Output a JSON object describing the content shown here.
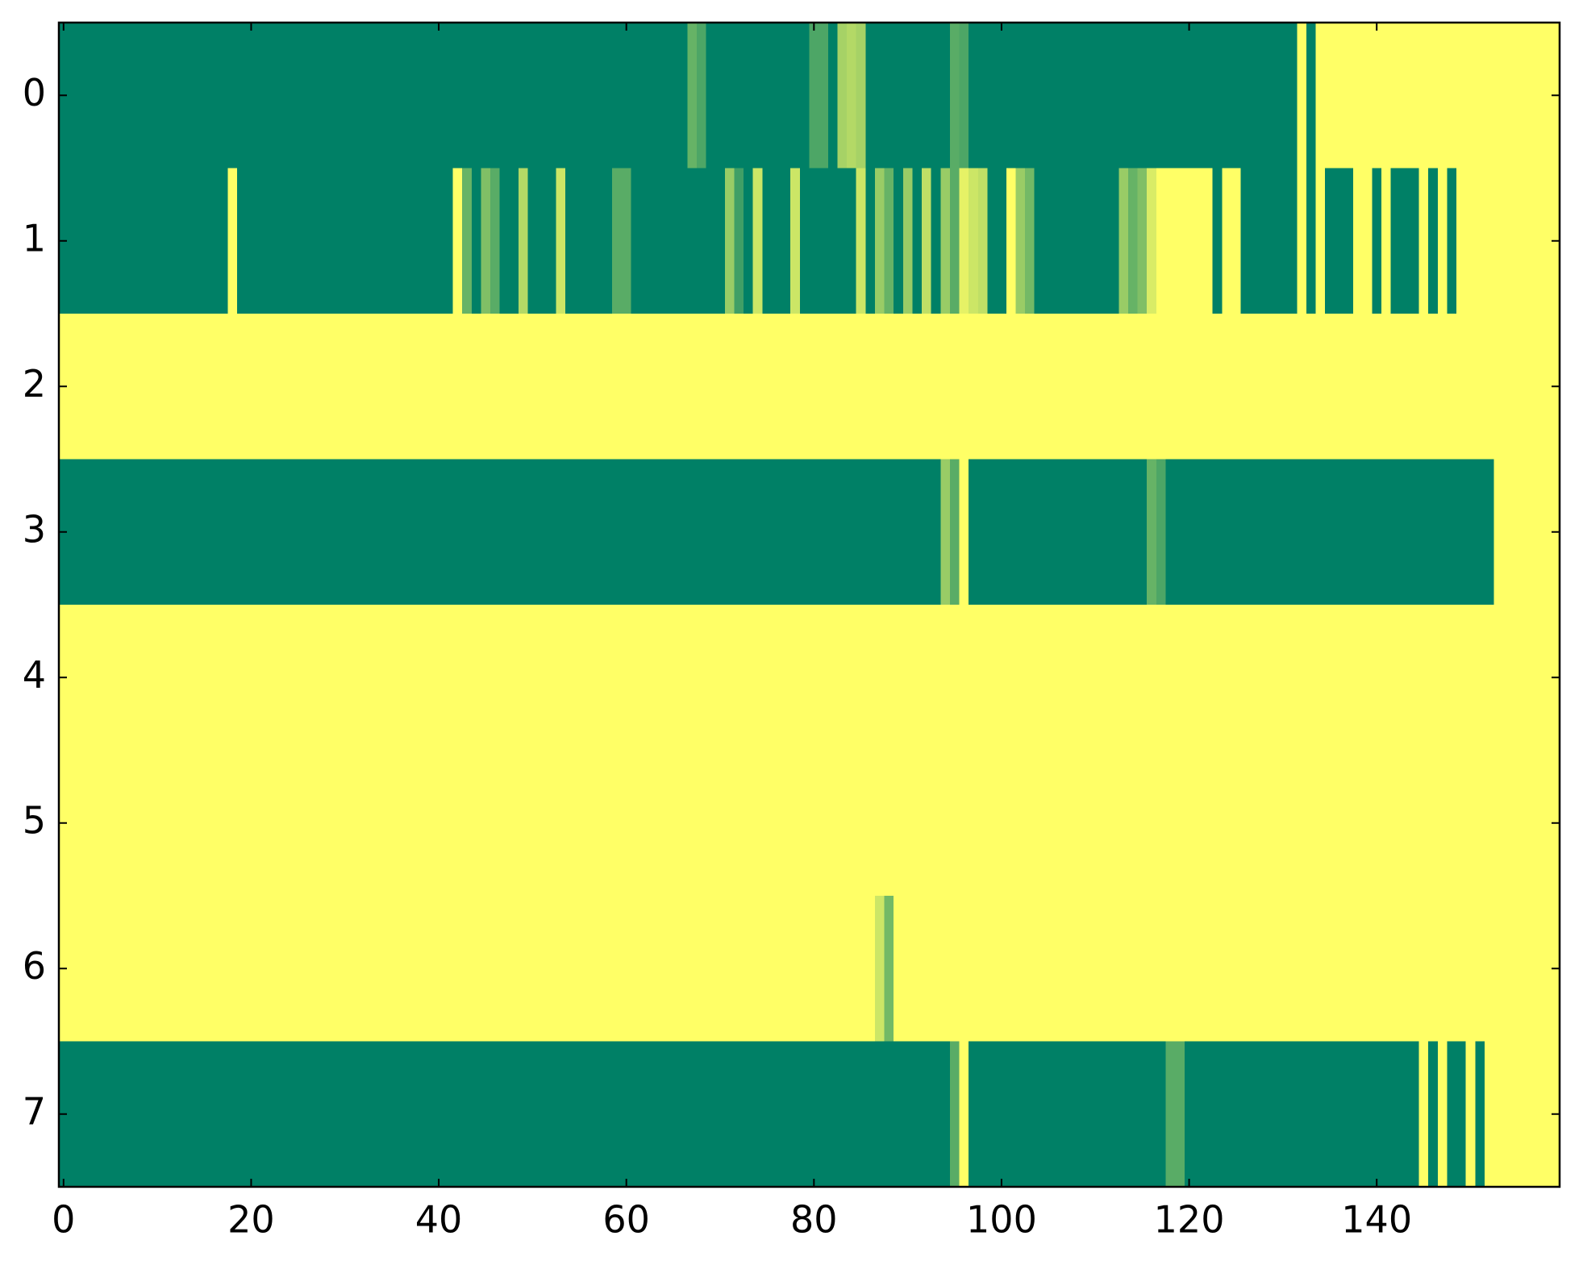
{
  "chart_data": {
    "type": "heatmap",
    "colormap": "summer",
    "xlim": [
      -0.5,
      159.5
    ],
    "ylim": [
      7.5,
      -0.5
    ],
    "xticks": [
      0,
      20,
      40,
      60,
      80,
      100,
      120,
      140
    ],
    "yticks": [
      0,
      1,
      2,
      3,
      4,
      5,
      6,
      7
    ],
    "z": [
      [
        0,
        0,
        0,
        0,
        0,
        0,
        0,
        0,
        0,
        0,
        0,
        0,
        0,
        0,
        0,
        0,
        0,
        0,
        0,
        0,
        0,
        0,
        0,
        0,
        0,
        0,
        0,
        0,
        0,
        0,
        0,
        0,
        0,
        0,
        0,
        0,
        0,
        0,
        0,
        0,
        0,
        0,
        0,
        0,
        0,
        0,
        0,
        0,
        0,
        0,
        0,
        0,
        0,
        0,
        0,
        0,
        0,
        0,
        0,
        0,
        0,
        0,
        0,
        0,
        0,
        0,
        0,
        0.4,
        0.3,
        0,
        0,
        0,
        0,
        0,
        0,
        0,
        0,
        0,
        0,
        0,
        0.3,
        0.3,
        0,
        0.65,
        0.7,
        0.65,
        0,
        0,
        0,
        0,
        0,
        0,
        0,
        0,
        0,
        0.35,
        0.3,
        0,
        0,
        0,
        0,
        0,
        0,
        0,
        0,
        0,
        0,
        0,
        0,
        0,
        0,
        0,
        0,
        0,
        0,
        0,
        0,
        0,
        0,
        0,
        0,
        0,
        0,
        0,
        0,
        0,
        0,
        0,
        0,
        0,
        0,
        0,
        1,
        0,
        1,
        1,
        1,
        1,
        1,
        1,
        1,
        1,
        1,
        1,
        1,
        1,
        1,
        1,
        1,
        1,
        1,
        1,
        1,
        1,
        1,
        1,
        1,
        1,
        1,
        1
      ],
      [
        0,
        0,
        0,
        0,
        0,
        0,
        0,
        0,
        0,
        0,
        0,
        0,
        0,
        0,
        0,
        0,
        0,
        0,
        1,
        0,
        0,
        0,
        0,
        0,
        0,
        0,
        0,
        0,
        0,
        0,
        0,
        0,
        0,
        0,
        0,
        0,
        0,
        0,
        0,
        0,
        0,
        0,
        1,
        0.4,
        0,
        0.5,
        0.35,
        0,
        0,
        0.7,
        0,
        0,
        0,
        0.8,
        0,
        0,
        0,
        0,
        0,
        0.35,
        0.35,
        0,
        0,
        0,
        0,
        0,
        0,
        0,
        0,
        0,
        0,
        0.6,
        0.25,
        0,
        0.8,
        0,
        0,
        0,
        0.8,
        0,
        0,
        0,
        0,
        0,
        0,
        0.8,
        0,
        0.6,
        0.4,
        0,
        0.6,
        0,
        0.75,
        0,
        0.6,
        0.35,
        0.9,
        0.8,
        0.75,
        0,
        0,
        1,
        0.6,
        0.45,
        0,
        0,
        0,
        0,
        0,
        0,
        0,
        0,
        0,
        0.6,
        0.4,
        0.5,
        0.85,
        1,
        1,
        1,
        1,
        1,
        1,
        0,
        1,
        1,
        0,
        0,
        0,
        0,
        0,
        0,
        1,
        0,
        1,
        0,
        0,
        0,
        1,
        1,
        0,
        1,
        0,
        0,
        0,
        1,
        0,
        1,
        0,
        1,
        1,
        1,
        1,
        1,
        1,
        1,
        1,
        1,
        1,
        1
      ],
      [
        1,
        1,
        1,
        1,
        1,
        1,
        1,
        1,
        1,
        1,
        1,
        1,
        1,
        1,
        1,
        1,
        1,
        1,
        1,
        1,
        1,
        1,
        1,
        1,
        1,
        1,
        1,
        1,
        1,
        1,
        1,
        1,
        1,
        1,
        1,
        1,
        1,
        1,
        1,
        1,
        1,
        1,
        1,
        1,
        1,
        1,
        1,
        1,
        1,
        1,
        1,
        1,
        1,
        1,
        1,
        1,
        1,
        1,
        1,
        1,
        1,
        1,
        1,
        1,
        1,
        1,
        1,
        1,
        1,
        1,
        1,
        1,
        1,
        1,
        1,
        1,
        1,
        1,
        1,
        1,
        1,
        1,
        1,
        1,
        1,
        1,
        1,
        1,
        1,
        1,
        1,
        1,
        1,
        1,
        1,
        1,
        1,
        1,
        1,
        1,
        1,
        1,
        1,
        1,
        1,
        1,
        1,
        1,
        1,
        1,
        1,
        1,
        1,
        1,
        1,
        1,
        1,
        1,
        1,
        1,
        1,
        1,
        1,
        1,
        1,
        1,
        1,
        1,
        1,
        1,
        1,
        1,
        1,
        1,
        1,
        1,
        1,
        1,
        1,
        1,
        1,
        1,
        1,
        1,
        1,
        1,
        1,
        1,
        1,
        1,
        1,
        1,
        1,
        1,
        1,
        1,
        1,
        1,
        1,
        1
      ],
      [
        0,
        0,
        0,
        0,
        0,
        0,
        0,
        0,
        0,
        0,
        0,
        0,
        0,
        0,
        0,
        0,
        0,
        0,
        0,
        0,
        0,
        0,
        0,
        0,
        0,
        0,
        0,
        0,
        0,
        0,
        0,
        0,
        0,
        0,
        0,
        0,
        0,
        0,
        0,
        0,
        0,
        0,
        0,
        0,
        0,
        0,
        0,
        0,
        0,
        0,
        0,
        0,
        0,
        0,
        0,
        0,
        0,
        0,
        0,
        0,
        0,
        0,
        0,
        0,
        0,
        0,
        0,
        0,
        0,
        0,
        0,
        0,
        0,
        0,
        0,
        0,
        0,
        0,
        0,
        0,
        0,
        0,
        0,
        0,
        0,
        0,
        0,
        0,
        0,
        0,
        0,
        0,
        0,
        0,
        0.6,
        0.35,
        1,
        0,
        0,
        0,
        0,
        0,
        0,
        0,
        0,
        0,
        0,
        0,
        0,
        0,
        0,
        0,
        0,
        0,
        0,
        0,
        0.4,
        0.3,
        0,
        0,
        0,
        0,
        0,
        0,
        0,
        0,
        0,
        0,
        0,
        0,
        0,
        0,
        0,
        0,
        0,
        0,
        0,
        0,
        0,
        0,
        0,
        0,
        0,
        0,
        0,
        0,
        0,
        0,
        0,
        0,
        0,
        0,
        0,
        1,
        1,
        1,
        1,
        1,
        1,
        1
      ],
      [
        1,
        1,
        1,
        1,
        1,
        1,
        1,
        1,
        1,
        1,
        1,
        1,
        1,
        1,
        1,
        1,
        1,
        1,
        1,
        1,
        1,
        1,
        1,
        1,
        1,
        1,
        1,
        1,
        1,
        1,
        1,
        1,
        1,
        1,
        1,
        1,
        1,
        1,
        1,
        1,
        1,
        1,
        1,
        1,
        1,
        1,
        1,
        1,
        1,
        1,
        1,
        1,
        1,
        1,
        1,
        1,
        1,
        1,
        1,
        1,
        1,
        1,
        1,
        1,
        1,
        1,
        1,
        1,
        1,
        1,
        1,
        1,
        1,
        1,
        1,
        1,
        1,
        1,
        1,
        1,
        1,
        1,
        1,
        1,
        1,
        1,
        1,
        1,
        1,
        1,
        1,
        1,
        1,
        1,
        1,
        1,
        1,
        1,
        1,
        1,
        1,
        1,
        1,
        1,
        1,
        1,
        1,
        1,
        1,
        1,
        1,
        1,
        1,
        1,
        1,
        1,
        1,
        1,
        1,
        1,
        1,
        1,
        1,
        1,
        1,
        1,
        1,
        1,
        1,
        1,
        1,
        1,
        1,
        1,
        1,
        1,
        1,
        1,
        1,
        1,
        1,
        1,
        1,
        1,
        1,
        1,
        1,
        1,
        1,
        1,
        1,
        1,
        1,
        1,
        1,
        1,
        1,
        1,
        1,
        1
      ],
      [
        1,
        1,
        1,
        1,
        1,
        1,
        1,
        1,
        1,
        1,
        1,
        1,
        1,
        1,
        1,
        1,
        1,
        1,
        1,
        1,
        1,
        1,
        1,
        1,
        1,
        1,
        1,
        1,
        1,
        1,
        1,
        1,
        1,
        1,
        1,
        1,
        1,
        1,
        1,
        1,
        1,
        1,
        1,
        1,
        1,
        1,
        1,
        1,
        1,
        1,
        1,
        1,
        1,
        1,
        1,
        1,
        1,
        1,
        1,
        1,
        1,
        1,
        1,
        1,
        1,
        1,
        1,
        1,
        1,
        1,
        1,
        1,
        1,
        1,
        1,
        1,
        1,
        1,
        1,
        1,
        1,
        1,
        1,
        1,
        1,
        1,
        1,
        1,
        1,
        1,
        1,
        1,
        1,
        1,
        1,
        1,
        1,
        1,
        1,
        1,
        1,
        1,
        1,
        1,
        1,
        1,
        1,
        1,
        1,
        1,
        1,
        1,
        1,
        1,
        1,
        1,
        1,
        1,
        1,
        1,
        1,
        1,
        1,
        1,
        1,
        1,
        1,
        1,
        1,
        1,
        1,
        1,
        1,
        1,
        1,
        1,
        1,
        1,
        1,
        1,
        1,
        1,
        1,
        1,
        1,
        1,
        1,
        1,
        1,
        1,
        1,
        1,
        1,
        1,
        1,
        1,
        1,
        1,
        1,
        1
      ],
      [
        1,
        1,
        1,
        1,
        1,
        1,
        1,
        1,
        1,
        1,
        1,
        1,
        1,
        1,
        1,
        1,
        1,
        1,
        1,
        1,
        1,
        1,
        1,
        1,
        1,
        1,
        1,
        1,
        1,
        1,
        1,
        1,
        1,
        1,
        1,
        1,
        1,
        1,
        1,
        1,
        1,
        1,
        1,
        1,
        1,
        1,
        1,
        1,
        1,
        1,
        1,
        1,
        1,
        1,
        1,
        1,
        1,
        1,
        1,
        1,
        1,
        1,
        1,
        1,
        1,
        1,
        1,
        1,
        1,
        1,
        1,
        1,
        1,
        1,
        1,
        1,
        1,
        1,
        1,
        1,
        1,
        1,
        1,
        1,
        1,
        1,
        1,
        0.8,
        0.45,
        1,
        1,
        1,
        1,
        1,
        1,
        1,
        1,
        1,
        1,
        1,
        1,
        1,
        1,
        1,
        1,
        1,
        1,
        1,
        1,
        1,
        1,
        1,
        1,
        1,
        1,
        1,
        1,
        1,
        1,
        1,
        1,
        1,
        1,
        1,
        1,
        1,
        1,
        1,
        1,
        1,
        1,
        1,
        1,
        1,
        1,
        1,
        1,
        1,
        1,
        1,
        1,
        1,
        1,
        1,
        1,
        1,
        1,
        1,
        1,
        1,
        1,
        1,
        1,
        1,
        1,
        1,
        1,
        1,
        1,
        1
      ],
      [
        0,
        0,
        0,
        0,
        0,
        0,
        0,
        0,
        0,
        0,
        0,
        0,
        0,
        0,
        0,
        0,
        0,
        0,
        0,
        0,
        0,
        0,
        0,
        0,
        0,
        0,
        0,
        0,
        0,
        0,
        0,
        0,
        0,
        0,
        0,
        0,
        0,
        0,
        0,
        0,
        0,
        0,
        0,
        0,
        0,
        0,
        0,
        0,
        0,
        0,
        0,
        0,
        0,
        0,
        0,
        0,
        0,
        0,
        0,
        0,
        0,
        0,
        0,
        0,
        0,
        0,
        0,
        0,
        0,
        0,
        0,
        0,
        0,
        0,
        0,
        0,
        0,
        0,
        0,
        0,
        0,
        0,
        0,
        0,
        0,
        0,
        0,
        0,
        0,
        0,
        0,
        0,
        0,
        0,
        0,
        0.35,
        1,
        0,
        0,
        0,
        0,
        0,
        0,
        0,
        0,
        0,
        0,
        0,
        0,
        0,
        0,
        0,
        0,
        0,
        0,
        0,
        0,
        0,
        0.35,
        0.35,
        0,
        0,
        0,
        0,
        0,
        0,
        0,
        0,
        0,
        0,
        0,
        0,
        0,
        0,
        0,
        0,
        0,
        0,
        0,
        0,
        0,
        0,
        0,
        0,
        0,
        1,
        0,
        1,
        0,
        0,
        1,
        0,
        1,
        1,
        1,
        1,
        1,
        1,
        1,
        1
      ]
    ]
  }
}
